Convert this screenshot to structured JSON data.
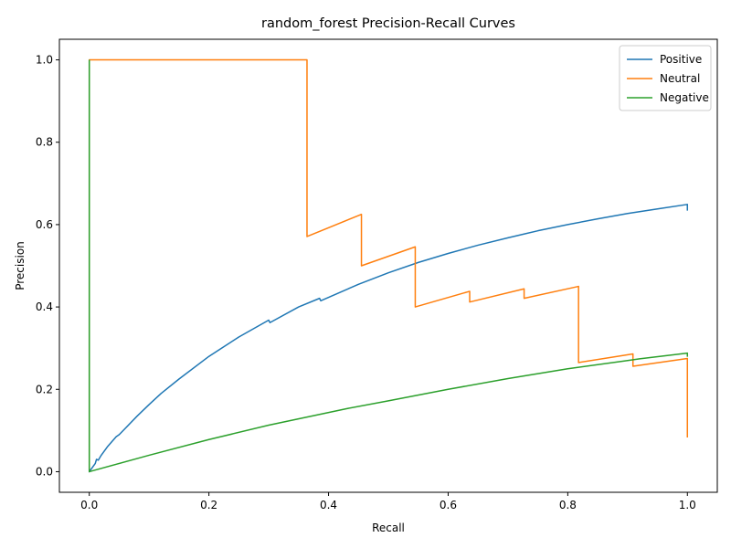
{
  "chart_data": {
    "type": "line",
    "title": "random_forest Precision-Recall Curves",
    "xlabel": "Recall",
    "ylabel": "Precision",
    "xlim": [
      -0.05,
      1.05
    ],
    "ylim": [
      -0.05,
      1.05
    ],
    "xticks": [
      0.0,
      0.2,
      0.4,
      0.6,
      0.8,
      1.0
    ],
    "xtick_labels": [
      "0.0",
      "0.2",
      "0.4",
      "0.6",
      "0.8",
      "1.0"
    ],
    "yticks": [
      0.0,
      0.2,
      0.4,
      0.6,
      0.8,
      1.0
    ],
    "ytick_labels": [
      "0.0",
      "0.2",
      "0.4",
      "0.6",
      "0.8",
      "1.0"
    ],
    "grid": false,
    "legend_position": "top-right",
    "series": [
      {
        "name": "Positive",
        "color": "#1f77b4",
        "points": [
          [
            0.0,
            1.0
          ],
          [
            0.0,
            0.0
          ],
          [
            0.01,
            0.02
          ],
          [
            0.012,
            0.03
          ],
          [
            0.015,
            0.028
          ],
          [
            0.02,
            0.04
          ],
          [
            0.03,
            0.06
          ],
          [
            0.045,
            0.085
          ],
          [
            0.05,
            0.09
          ],
          [
            0.06,
            0.105
          ],
          [
            0.08,
            0.135
          ],
          [
            0.1,
            0.163
          ],
          [
            0.12,
            0.19
          ],
          [
            0.15,
            0.225
          ],
          [
            0.2,
            0.28
          ],
          [
            0.25,
            0.327
          ],
          [
            0.3,
            0.368
          ],
          [
            0.302,
            0.362
          ],
          [
            0.35,
            0.4
          ],
          [
            0.385,
            0.421
          ],
          [
            0.387,
            0.415
          ],
          [
            0.45,
            0.455
          ],
          [
            0.5,
            0.483
          ],
          [
            0.55,
            0.508
          ],
          [
            0.6,
            0.53
          ],
          [
            0.65,
            0.55
          ],
          [
            0.7,
            0.568
          ],
          [
            0.75,
            0.585
          ],
          [
            0.8,
            0.6
          ],
          [
            0.85,
            0.614
          ],
          [
            0.9,
            0.627
          ],
          [
            0.95,
            0.638
          ],
          [
            1.0,
            0.649
          ],
          [
            1.0,
            0.634
          ]
        ]
      },
      {
        "name": "Neutral",
        "color": "#ff7f0e",
        "points": [
          [
            0.0,
            0.0
          ],
          [
            0.0,
            1.0
          ],
          [
            0.364,
            1.0
          ],
          [
            0.364,
            0.571
          ],
          [
            0.455,
            0.625
          ],
          [
            0.455,
            0.5
          ],
          [
            0.545,
            0.546
          ],
          [
            0.545,
            0.4
          ],
          [
            0.636,
            0.438
          ],
          [
            0.636,
            0.412
          ],
          [
            0.727,
            0.444
          ],
          [
            0.727,
            0.421
          ],
          [
            0.818,
            0.45
          ],
          [
            0.818,
            0.265
          ],
          [
            0.909,
            0.286
          ],
          [
            0.909,
            0.256
          ],
          [
            1.0,
            0.275
          ],
          [
            1.0,
            0.083
          ]
        ]
      },
      {
        "name": "Negative",
        "color": "#2ca02c",
        "points": [
          [
            0.0,
            1.0
          ],
          [
            0.0,
            0.0
          ],
          [
            0.1,
            0.04
          ],
          [
            0.2,
            0.078
          ],
          [
            0.3,
            0.113
          ],
          [
            0.43,
            0.153
          ],
          [
            0.5,
            0.172
          ],
          [
            0.6,
            0.2
          ],
          [
            0.7,
            0.226
          ],
          [
            0.8,
            0.25
          ],
          [
            0.9,
            0.27
          ],
          [
            0.92,
            0.274
          ],
          [
            1.0,
            0.288
          ],
          [
            1.0,
            0.279
          ]
        ]
      }
    ]
  }
}
